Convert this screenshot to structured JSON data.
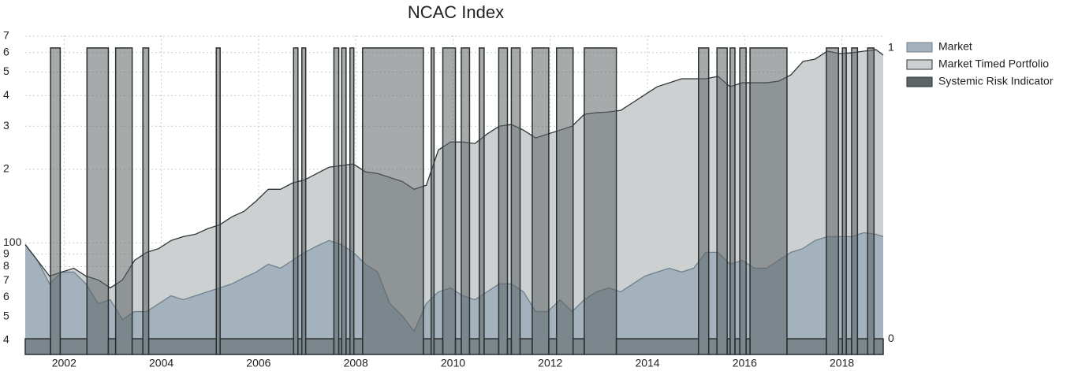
{
  "chart_data": {
    "type": "area",
    "title": "NCAC Index",
    "x": [
      2001.2,
      2001.45,
      2001.7,
      2001.95,
      2002.2,
      2002.45,
      2002.7,
      2002.95,
      2003.2,
      2003.45,
      2003.7,
      2003.95,
      2004.2,
      2004.45,
      2004.7,
      2004.95,
      2005.2,
      2005.45,
      2005.7,
      2005.95,
      2006.2,
      2006.45,
      2006.7,
      2006.95,
      2007.2,
      2007.45,
      2007.7,
      2007.95,
      2008.2,
      2008.45,
      2008.7,
      2008.95,
      2009.2,
      2009.45,
      2009.7,
      2009.95,
      2010.2,
      2010.45,
      2010.7,
      2010.95,
      2011.2,
      2011.45,
      2011.7,
      2011.95,
      2012.2,
      2012.45,
      2012.7,
      2012.95,
      2013.2,
      2013.45,
      2013.7,
      2013.95,
      2014.2,
      2014.45,
      2014.7,
      2014.95,
      2015.2,
      2015.45,
      2015.7,
      2015.95,
      2016.2,
      2016.45,
      2016.7,
      2016.95,
      2017.2,
      2017.45,
      2017.7,
      2017.95,
      2018.2,
      2018.45,
      2018.7,
      2018.85
    ],
    "series": [
      {
        "name": "Market",
        "color": "#a3b2bc",
        "line_color": "#6f818c",
        "values": [
          98.5,
          84.9,
          68.0,
          76.0,
          76.0,
          68.0,
          56.5,
          58.6,
          48.6,
          52.4,
          52.4,
          56.5,
          60.8,
          58.6,
          60.8,
          63.1,
          65.5,
          68.0,
          72.1,
          76.0,
          81.8,
          78.8,
          84.9,
          91.5,
          97.1,
          102.3,
          98.5,
          91.5,
          81.8,
          76.0,
          56.5,
          50.5,
          43.5,
          56.5,
          63.1,
          65.5,
          60.8,
          58.6,
          63.1,
          68.0,
          68.0,
          63.1,
          52.4,
          52.4,
          58.6,
          52.4,
          58.6,
          63.1,
          65.5,
          63.1,
          68.0,
          73.2,
          76.0,
          78.8,
          76.0,
          78.8,
          91.5,
          91.5,
          81.8,
          84.9,
          78.8,
          78.8,
          84.9,
          91.5,
          94.9,
          102.3,
          106.1,
          106.1,
          106.1,
          110.1,
          108.5,
          106.1
        ]
      },
      {
        "name": "Market Timed Portfolio",
        "color": "#ccd0d0",
        "line_color": "#2f3536",
        "values": [
          98.5,
          84.9,
          73.2,
          76.0,
          78.8,
          73.2,
          70.6,
          65.5,
          70.6,
          84.9,
          91.5,
          94.9,
          102.3,
          106.1,
          108.5,
          114.3,
          118.6,
          127.8,
          134.6,
          148.3,
          165.7,
          165.7,
          175.9,
          181.1,
          192.3,
          204,
          207,
          210.2,
          195.2,
          192.3,
          185.2,
          178.5,
          165.7,
          172,
          240.1,
          258.7,
          258.7,
          254.9,
          278.7,
          300,
          304.8,
          289.2,
          268.6,
          278.7,
          289.2,
          300,
          335.5,
          340.7,
          343.1,
          348.3,
          375,
          404,
          435.2,
          451.6,
          468.8,
          468.8,
          468.8,
          479.6,
          435.2,
          451.6,
          451.6,
          451.6,
          458.6,
          486.4,
          552,
          564.6,
          608,
          594.4,
          598.6,
          608,
          617,
          585.9
        ]
      },
      {
        "name": "Systemic Risk Indicator",
        "color": "#5c6466",
        "axis": "y2",
        "step": true,
        "x": [
          2001.2,
          2001.72,
          2001.92,
          2002.47,
          2002.91,
          2003.06,
          2003.4,
          2003.62,
          2003.74,
          2005.13,
          2005.21,
          2006.72,
          2006.81,
          2006.89,
          2006.97,
          2007.55,
          2007.65,
          2007.71,
          2007.8,
          2007.88,
          2007.96,
          2008.14,
          2009.39,
          2009.55,
          2009.61,
          2009.79,
          2010.05,
          2010.17,
          2010.34,
          2010.54,
          2010.64,
          2010.94,
          2011.12,
          2011.2,
          2011.38,
          2011.63,
          2011.97,
          2012.13,
          2012.47,
          2012.7,
          2013.36,
          2015.05,
          2015.26,
          2015.43,
          2015.64,
          2015.7,
          2015.8,
          2015.9,
          2016.03,
          2016.11,
          2016.87,
          2017.68,
          2017.93,
          2018.01,
          2018.09,
          2018.2,
          2018.32,
          2018.53,
          2018.66,
          2018.85
        ],
        "values": [
          0,
          1,
          0,
          1,
          0,
          1,
          0,
          1,
          0,
          1,
          0,
          1,
          0,
          1,
          0,
          1,
          0,
          1,
          0,
          1,
          0,
          1,
          0,
          1,
          0,
          1,
          0,
          1,
          0,
          1,
          0,
          1,
          0,
          1,
          0,
          1,
          0,
          1,
          0,
          1,
          0,
          1,
          0,
          1,
          0,
          1,
          0,
          1,
          0,
          1,
          0,
          1,
          0,
          1,
          0,
          1,
          0,
          1,
          0,
          0
        ]
      }
    ],
    "xlim": [
      2001.2,
      2018.85
    ],
    "xticks": [
      2002,
      2004,
      2006,
      2008,
      2010,
      2012,
      2014,
      2016,
      2018
    ],
    "ylim": [
      35,
      705
    ],
    "yscale": "log",
    "yticks": [
      {
        "value": 40,
        "label": "4"
      },
      {
        "value": 50,
        "label": "5"
      },
      {
        "value": 60,
        "label": "6"
      },
      {
        "value": 70,
        "label": "7"
      },
      {
        "value": 80,
        "label": "8"
      },
      {
        "value": 90,
        "label": "9"
      },
      100,
      {
        "value": 200,
        "label": "2"
      },
      {
        "value": 300,
        "label": "3"
      },
      {
        "value": 400,
        "label": "4"
      },
      {
        "value": 500,
        "label": "5"
      },
      {
        "value": 600,
        "label": "6"
      },
      {
        "value": 700,
        "label": "7"
      }
    ],
    "y2lim": [
      -0.054,
      1.043
    ],
    "y2ticks": [
      0,
      1
    ],
    "grid": true,
    "legend": "upper right"
  }
}
